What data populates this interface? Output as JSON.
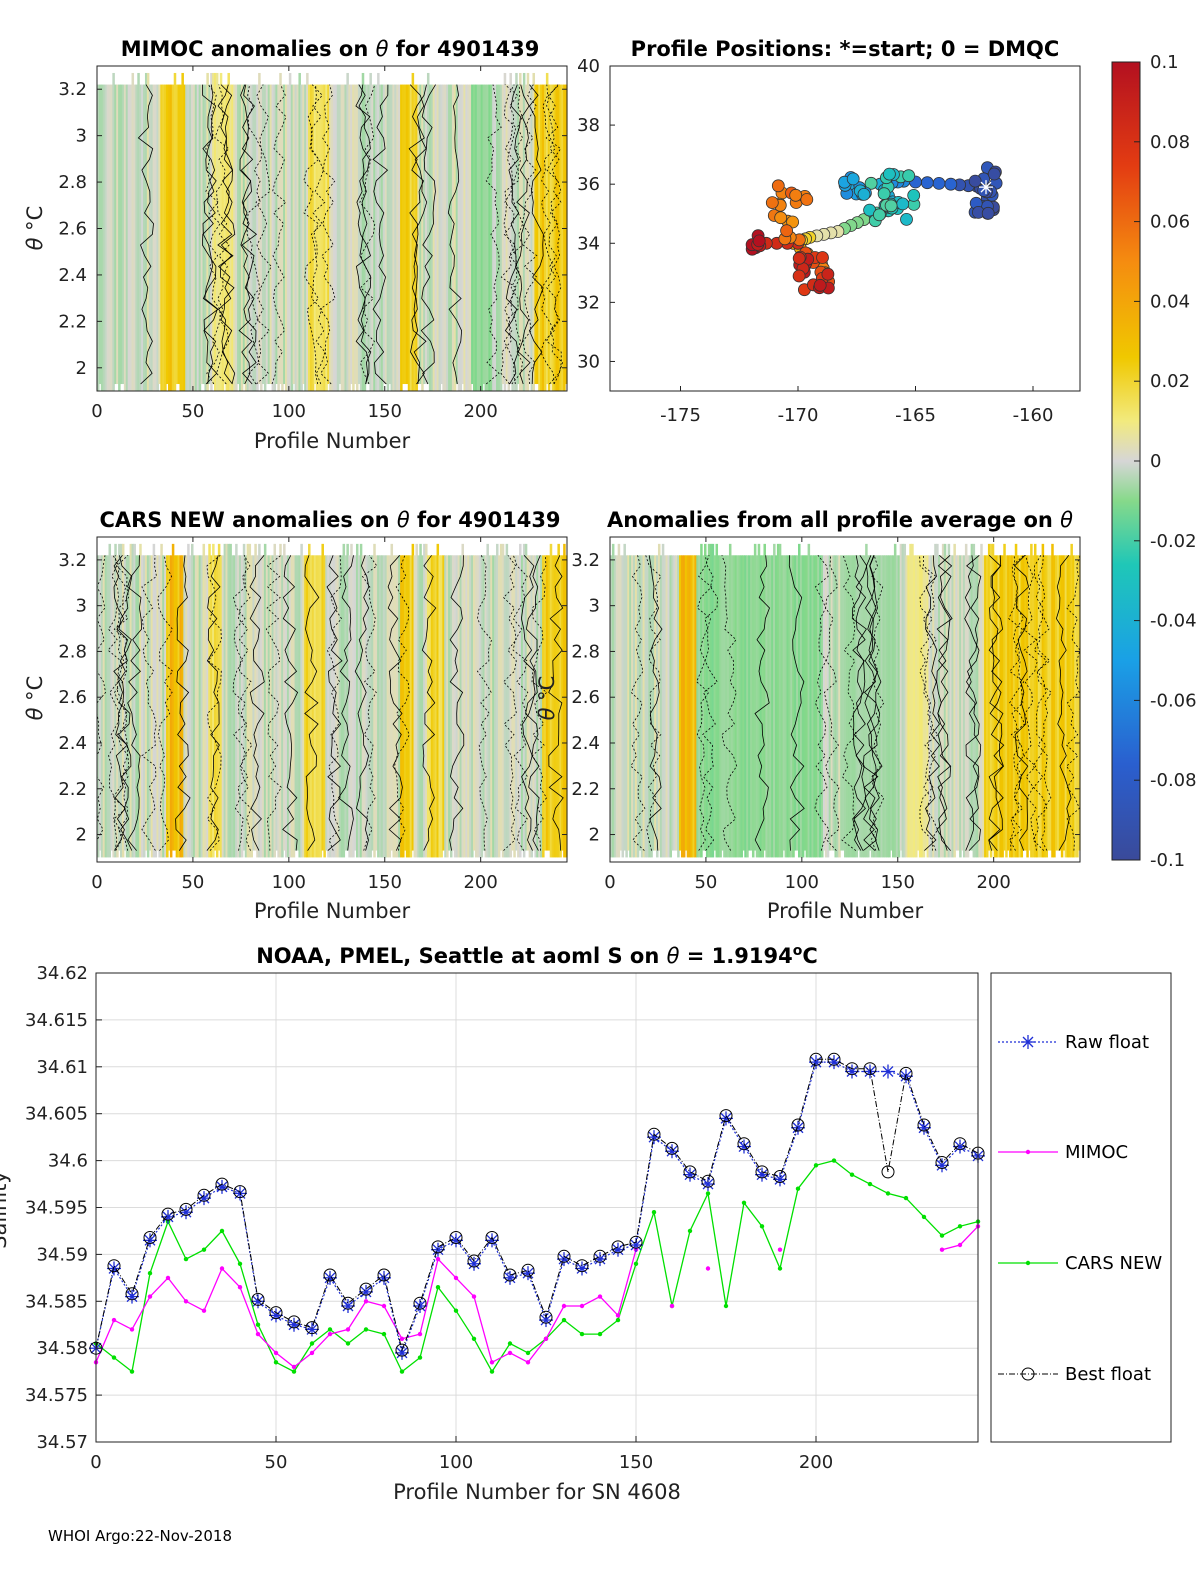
{
  "chart_data": [
    {
      "id": "mimoc",
      "type": "heatmap",
      "title_prefix": "MIMOC anomalies on ",
      "title_var": "θ",
      "title_suffix": "  for 4901439",
      "xlabel": "Profile Number",
      "ylabel_var": "θ",
      "ylabel_unit": "°C",
      "xlim": [
        0,
        245
      ],
      "ylim": [
        1.9,
        3.3
      ],
      "xticks": [
        0,
        50,
        100,
        150,
        200
      ],
      "yticks": [
        2,
        2.2,
        2.4,
        2.6,
        2.8,
        3,
        3.2
      ],
      "warm_bands": [
        [
          33,
          45,
          0.035
        ],
        [
          110,
          120,
          0.02
        ],
        [
          158,
          166,
          0.03
        ],
        [
          228,
          245,
          0.03
        ],
        [
          60,
          70,
          0.015
        ]
      ],
      "cool_bands": [
        [
          195,
          205,
          -0.012
        ]
      ]
    },
    {
      "id": "positions",
      "type": "scatter",
      "title": "Profile Positions: *=start; 0 = DMQC",
      "xlim": [
        -178,
        -158
      ],
      "ylim": [
        29,
        40
      ],
      "xticks": [
        -175,
        -170,
        -165,
        -160
      ],
      "yticks": [
        30,
        32,
        34,
        36,
        38,
        40
      ],
      "track_waypoints": [
        [
          -162,
          35.9
        ],
        [
          -163.5,
          36.0
        ],
        [
          -165.5,
          36.1
        ],
        [
          -166.5,
          36.0
        ],
        [
          -165.8,
          35.2
        ],
        [
          -167.2,
          34.8
        ],
        [
          -168.3,
          34.4
        ],
        [
          -169.5,
          34.2
        ],
        [
          -170.2,
          34.0
        ],
        [
          -169.0,
          33.3
        ],
        [
          -168.7,
          32.7
        ],
        [
          -170.0,
          34.0
        ],
        [
          -171.8,
          34.0
        ]
      ],
      "clusters": [
        {
          "center": [
            -162.0,
            35.8
          ],
          "count": 22,
          "spread": [
            0.5,
            0.8
          ],
          "color_value": -0.09
        },
        {
          "center": [
            -166.0,
            35.6
          ],
          "count": 24,
          "spread": [
            1.0,
            0.9
          ],
          "color_value": -0.025
        },
        {
          "center": [
            -167.6,
            36.0
          ],
          "count": 14,
          "spread": [
            0.5,
            0.4
          ],
          "color_value": -0.05
        },
        {
          "center": [
            -170.3,
            35.0
          ],
          "count": 18,
          "spread": [
            0.8,
            1.0
          ],
          "color_value": 0.055
        },
        {
          "center": [
            -169.2,
            33.0
          ],
          "count": 20,
          "spread": [
            0.8,
            0.6
          ],
          "color_value": 0.085
        },
        {
          "center": [
            -171.8,
            34.0
          ],
          "count": 8,
          "spread": [
            0.2,
            0.3
          ],
          "color_value": 0.1
        }
      ]
    },
    {
      "id": "cars",
      "type": "heatmap",
      "title_prefix": "CARS NEW anomalies on ",
      "title_var": "θ",
      "title_suffix": " for 4901439",
      "xlabel": "Profile Number",
      "ylabel_var": "θ",
      "ylabel_unit": "°C",
      "xlim": [
        0,
        245
      ],
      "ylim": [
        1.88,
        3.3
      ],
      "xticks": [
        0,
        50,
        100,
        150,
        200
      ],
      "yticks": [
        2,
        2.2,
        2.4,
        2.6,
        2.8,
        3,
        3.2
      ],
      "warm_bands": [
        [
          36,
          44,
          0.04
        ],
        [
          58,
          64,
          0.02
        ],
        [
          108,
          118,
          0.025
        ],
        [
          158,
          164,
          0.03
        ],
        [
          172,
          180,
          0.025
        ],
        [
          232,
          245,
          0.03
        ]
      ],
      "cool_bands": []
    },
    {
      "id": "allavg",
      "type": "heatmap",
      "title_prefix": "Anomalies from all profile average on ",
      "title_var": "θ",
      "title_suffix": "",
      "xlabel": "Profile Number",
      "ylabel_var": "θ",
      "ylabel_unit": "°C",
      "xlim": [
        0,
        245
      ],
      "ylim": [
        1.88,
        3.3
      ],
      "xticks": [
        0,
        50,
        100,
        150,
        200
      ],
      "yticks": [
        2,
        2.2,
        2.4,
        2.6,
        2.8,
        3,
        3.2
      ],
      "warm_bands": [
        [
          36,
          44,
          0.04
        ],
        [
          155,
          165,
          0.012
        ],
        [
          195,
          245,
          0.03
        ]
      ],
      "cool_bands": [
        [
          45,
          110,
          -0.012
        ],
        [
          120,
          150,
          -0.008
        ]
      ]
    },
    {
      "id": "colorbar",
      "type": "colorbar",
      "range": [
        -0.1,
        0.1
      ],
      "tick_labels": [
        "0.1",
        "0.08",
        "0.06",
        "0.04",
        "0.02",
        "0",
        "-0.02",
        "-0.04",
        "-0.06",
        "-0.08",
        "-0.1"
      ],
      "tick_values": [
        0.1,
        0.08,
        0.06,
        0.04,
        0.02,
        0,
        -0.02,
        -0.04,
        -0.06,
        -0.08,
        -0.1
      ]
    },
    {
      "id": "salinity",
      "type": "line",
      "title_prefix": "NOAA, PMEL, Seattle at aoml S on ",
      "title_var": "θ",
      "title_mid": " = 1.9194",
      "title_sup": "o",
      "title_end": "C",
      "xlabel": "Profile Number for SN 4608",
      "ylabel": "Salinity",
      "xlim": [
        0,
        245
      ],
      "ylim": [
        34.57,
        34.62
      ],
      "xticks": [
        0,
        50,
        100,
        150,
        200
      ],
      "yticks": [
        34.57,
        34.575,
        34.58,
        34.585,
        34.59,
        34.595,
        34.6,
        34.605,
        34.61,
        34.615,
        34.62
      ],
      "ytick_labels": [
        "34.57",
        "34.575",
        "34.58",
        "34.585",
        "34.59",
        "34.595",
        "34.6",
        "34.605",
        "34.61",
        "34.615",
        "34.62"
      ],
      "grid": true,
      "legend_position": "right",
      "legend": [
        "Raw float",
        "MIMOC",
        "CARS NEW",
        "Best float"
      ],
      "series_colors": {
        "raw": "#1f2fd6",
        "mimoc": "#ff00ff",
        "cars": "#00e000",
        "best": "#000000"
      },
      "x": [
        0,
        5,
        10,
        15,
        20,
        25,
        30,
        35,
        40,
        45,
        50,
        55,
        60,
        65,
        70,
        75,
        80,
        85,
        90,
        95,
        100,
        105,
        110,
        115,
        120,
        125,
        130,
        135,
        140,
        145,
        150,
        155,
        160,
        165,
        170,
        175,
        180,
        185,
        190,
        195,
        200,
        205,
        210,
        215,
        220,
        225,
        230,
        235,
        240,
        245
      ],
      "series": [
        {
          "name": "Raw float",
          "values": [
            34.58,
            34.5885,
            34.5855,
            34.5915,
            34.594,
            34.5945,
            34.596,
            34.5972,
            34.5965,
            34.585,
            34.5835,
            34.5825,
            34.582,
            34.5875,
            34.5845,
            34.586,
            34.5875,
            34.5795,
            34.5845,
            34.5905,
            34.5915,
            34.589,
            34.5915,
            34.5875,
            34.588,
            34.583,
            34.5895,
            34.5885,
            34.5895,
            34.5905,
            34.591,
            34.6025,
            34.601,
            34.5985,
            34.5975,
            34.6045,
            34.6015,
            34.5985,
            34.598,
            34.6035,
            34.6105,
            34.6105,
            34.6095,
            34.6095,
            34.6095,
            34.609,
            34.6035,
            34.5995,
            34.6015,
            34.6005
          ]
        },
        {
          "name": "MIMOC",
          "values": [
            34.5785,
            34.583,
            34.582,
            34.5855,
            34.5875,
            34.585,
            34.584,
            34.5885,
            34.5865,
            34.5815,
            34.5795,
            34.578,
            34.5795,
            34.5815,
            34.582,
            34.585,
            34.5845,
            34.581,
            34.5815,
            34.5895,
            34.5875,
            34.5855,
            34.5785,
            34.5795,
            34.5785,
            34.581,
            34.5845,
            34.5845,
            34.5855,
            34.5835,
            34.5905,
            null,
            34.5845,
            null,
            34.5885,
            null,
            null,
            null,
            34.5905,
            null,
            null,
            null,
            null,
            null,
            null,
            null,
            null,
            34.5905,
            34.591,
            34.593
          ]
        },
        {
          "name": "CARS NEW",
          "values": [
            34.5805,
            34.579,
            34.5775,
            34.588,
            34.5935,
            34.5895,
            34.5905,
            34.5925,
            34.589,
            34.5825,
            34.5785,
            34.5775,
            34.5805,
            34.582,
            34.5805,
            34.582,
            34.5815,
            34.5775,
            34.579,
            34.5865,
            34.584,
            34.581,
            34.5775,
            34.5805,
            34.5795,
            34.581,
            34.583,
            34.5815,
            34.5815,
            34.583,
            34.589,
            34.5945,
            34.5845,
            34.5925,
            34.5965,
            34.5845,
            34.5955,
            34.593,
            34.5885,
            34.597,
            34.5995,
            34.6,
            34.5985,
            34.5975,
            34.5965,
            34.596,
            34.594,
            34.592,
            34.593,
            34.5935
          ]
        },
        {
          "name": "Best float",
          "values": [
            34.58,
            34.5888,
            34.5858,
            34.5918,
            34.5943,
            34.5948,
            34.5963,
            34.5975,
            34.5967,
            34.5852,
            34.5838,
            34.5828,
            34.5822,
            34.5878,
            34.5848,
            34.5863,
            34.5878,
            34.5798,
            34.5848,
            34.5908,
            34.5918,
            34.5893,
            34.5918,
            34.5878,
            34.5883,
            34.5833,
            34.5898,
            34.5888,
            34.5898,
            34.5908,
            34.5913,
            34.6028,
            34.6013,
            34.5988,
            34.5978,
            34.6048,
            34.6018,
            34.5988,
            34.5983,
            34.6038,
            34.6108,
            34.6108,
            34.6098,
            34.6098,
            34.5988,
            34.6093,
            34.6038,
            34.5998,
            34.6018,
            34.6008
          ]
        }
      ]
    }
  ],
  "footer": "WHOI Argo:22-Nov-2018"
}
